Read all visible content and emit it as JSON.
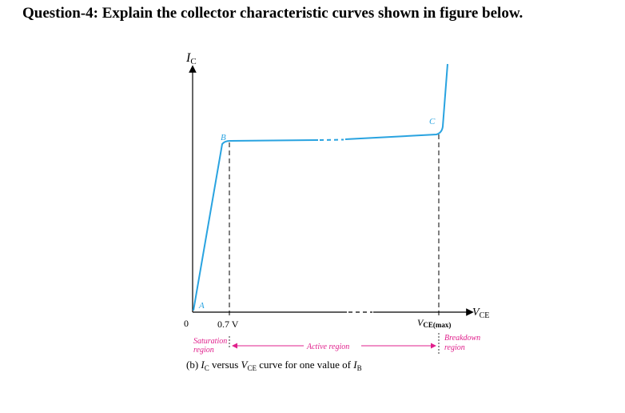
{
  "question": {
    "title": "Question-4: Explain the collector characteristic curves shown in figure below."
  },
  "diagram": {
    "y_axis_label": "I",
    "y_axis_sub": "C",
    "x_axis_label": "V",
    "x_axis_sub": "CE",
    "origin_label": "0",
    "point_a": "A",
    "point_b": "B",
    "point_c": "C",
    "tick_07": "0.7 V",
    "vce_max_main": "V",
    "vce_max_sub": "CE(max)",
    "saturation_line1": "Saturation",
    "saturation_line2": "region",
    "active_region": "Active region",
    "breakdown_line1": "Breakdown",
    "breakdown_line2": "region",
    "caption": {
      "prefix": "(b) ",
      "ic": "I",
      "ic_sub": "C",
      "mid": " versus ",
      "vce": "V",
      "vce_sub": "CE",
      "rest": " curve for one value of ",
      "ib": "I",
      "ib_sub": "B"
    }
  },
  "colors": {
    "curve": "#29a3e0",
    "region_arrows": "#e0208c",
    "axes": "#000000"
  }
}
